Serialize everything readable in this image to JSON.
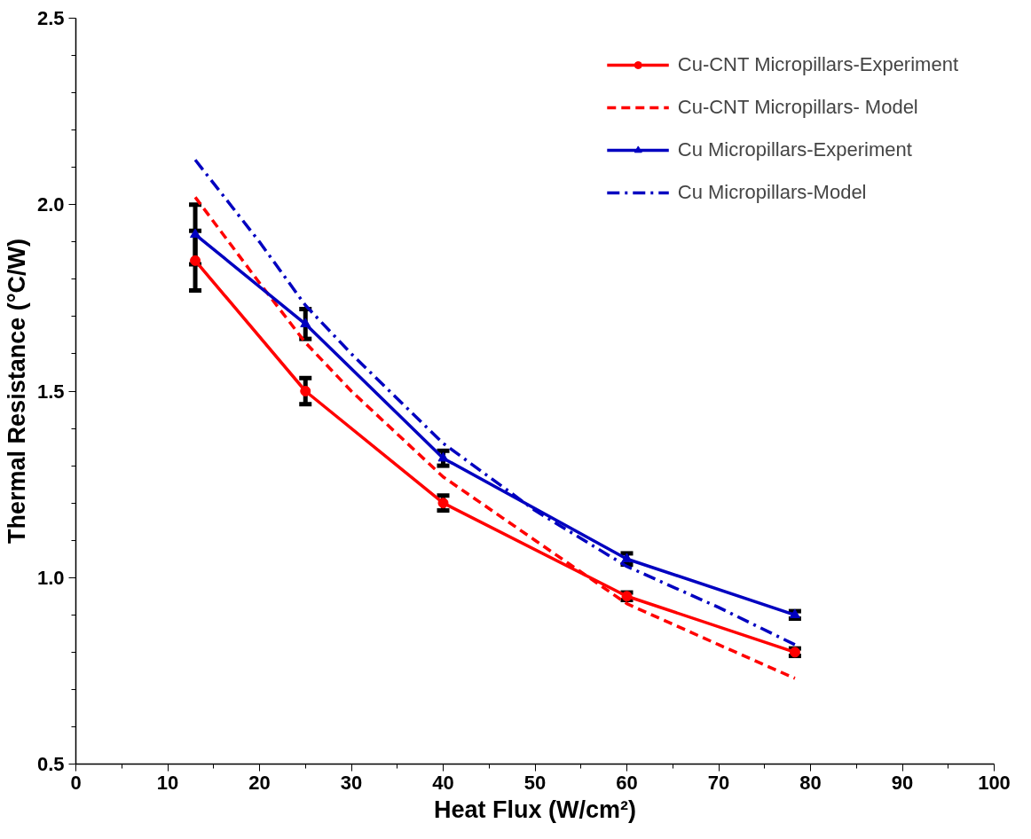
{
  "chart_data": {
    "type": "line",
    "xlabel": "Heat Flux (W/cm²)",
    "ylabel": "Thermal Resistance (°C/W)",
    "xlim": [
      0,
      100
    ],
    "ylim": [
      0.5,
      2.5
    ],
    "xticks": [
      0,
      10,
      20,
      30,
      40,
      50,
      60,
      70,
      80,
      90,
      100
    ],
    "yticks": [
      {
        "value": 0.5,
        "label": "0.5"
      },
      {
        "value": 1.0,
        "label": "1.0"
      },
      {
        "value": 1.5,
        "label": "1.5"
      },
      {
        "value": 2.0,
        "label": "2.0"
      },
      {
        "value": 2.5,
        "label": "2.5"
      }
    ],
    "grid": false,
    "legend": "top right",
    "series": [
      {
        "name": "Cu-CNT Micropillars-Experiment",
        "color": "#ff0000",
        "marker": "circle",
        "line_style": "solid",
        "x": [
          13,
          25,
          40,
          60,
          78.3
        ],
        "values": [
          1.85,
          1.5,
          1.2,
          0.95,
          0.8
        ],
        "errors": [
          0.08,
          0.035,
          0.02,
          0.01,
          0.01
        ]
      },
      {
        "name": "Cu-CNT Micropillars- Model",
        "color": "#ff0000",
        "marker": "none",
        "line_style": "dashed",
        "x": [
          13,
          20,
          25,
          30,
          40,
          50,
          60,
          70,
          78.3
        ],
        "values": [
          2.02,
          1.79,
          1.63,
          1.5,
          1.27,
          1.1,
          0.93,
          0.82,
          0.73
        ]
      },
      {
        "name": "Cu Micropillars-Experiment",
        "color": "#0000c0",
        "marker": "triangle",
        "line_style": "solid",
        "x": [
          13,
          25,
          40,
          60,
          78.3
        ],
        "values": [
          1.92,
          1.68,
          1.32,
          1.05,
          0.9
        ],
        "errors": [
          0.08,
          0.04,
          0.02,
          0.015,
          0.01
        ]
      },
      {
        "name": "Cu Micropillars-Model",
        "color": "#0000c0",
        "marker": "none",
        "line_style": "dashdot",
        "x": [
          13,
          20,
          25,
          30,
          40,
          50,
          60,
          70,
          78.3
        ],
        "values": [
          2.12,
          1.9,
          1.73,
          1.6,
          1.36,
          1.18,
          1.03,
          0.92,
          0.82
        ]
      }
    ]
  }
}
